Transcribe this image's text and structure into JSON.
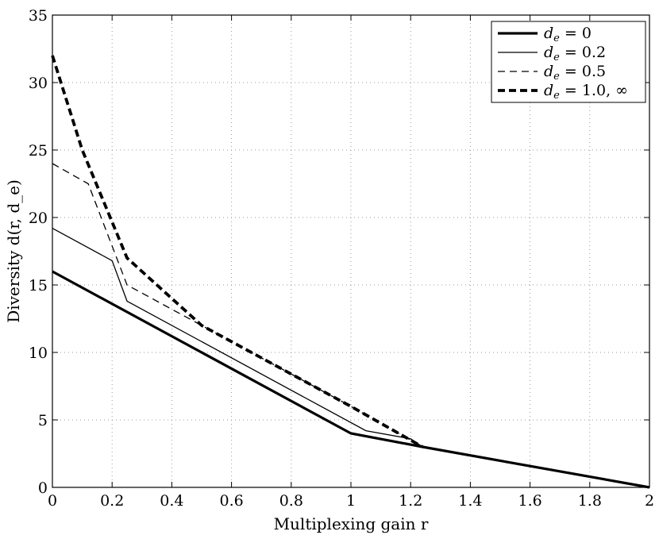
{
  "chart_data": {
    "type": "line",
    "title": "",
    "xlabel": "Multiplexing gain r",
    "ylabel": "Diversity d(r, d_e)",
    "xlim": [
      0,
      2
    ],
    "ylim": [
      0,
      35
    ],
    "xticks": [
      0,
      0.2,
      0.4,
      0.6,
      0.8,
      1,
      1.2,
      1.4,
      1.6,
      1.8,
      2
    ],
    "xtick_labels": [
      "0",
      "0.2",
      "0.4",
      "0.6",
      "0.8",
      "1",
      "1.2",
      "1.4",
      "1.6",
      "1.8",
      "2"
    ],
    "yticks": [
      0,
      5,
      10,
      15,
      20,
      25,
      30,
      35
    ],
    "ytick_labels": [
      "0",
      "5",
      "10",
      "15",
      "20",
      "25",
      "30",
      "35"
    ],
    "grid": true,
    "legend_position": "top-right",
    "series": [
      {
        "name": "d_e = 0",
        "style": "solid-thick",
        "color": "#000000",
        "x": [
          0,
          1.0,
          1.24,
          2.0
        ],
        "y": [
          16,
          4,
          3.0,
          0
        ]
      },
      {
        "name": "d_e = 0.2",
        "style": "solid-thin",
        "color": "#000000",
        "x": [
          0,
          0.2,
          0.25,
          1.05,
          1.2,
          1.24
        ],
        "y": [
          19.2,
          16.8,
          13.8,
          4.2,
          3.6,
          3.0
        ]
      },
      {
        "name": "d_e = 0.5",
        "style": "dashed-thin",
        "color": "#000000",
        "x": [
          0,
          0.12,
          0.25,
          0.5,
          1.0,
          1.24
        ],
        "y": [
          24,
          22.5,
          15,
          12,
          6,
          3.0
        ]
      },
      {
        "name": "d_e = 1.0, ∞",
        "style": "dashed-thick",
        "color": "#000000",
        "x": [
          0,
          0.1,
          0.25,
          0.5,
          1.0,
          1.24
        ],
        "y": [
          32,
          25,
          17,
          12,
          6,
          3.0
        ]
      }
    ]
  },
  "legend": [
    {
      "var": "d",
      "sub": "e",
      "rest": " = 0"
    },
    {
      "var": "d",
      "sub": "e",
      "rest": " = 0.2"
    },
    {
      "var": "d",
      "sub": "e",
      "rest": " = 0.5"
    },
    {
      "var": "d",
      "sub": "e",
      "rest": " = 1.0, ∞"
    }
  ]
}
